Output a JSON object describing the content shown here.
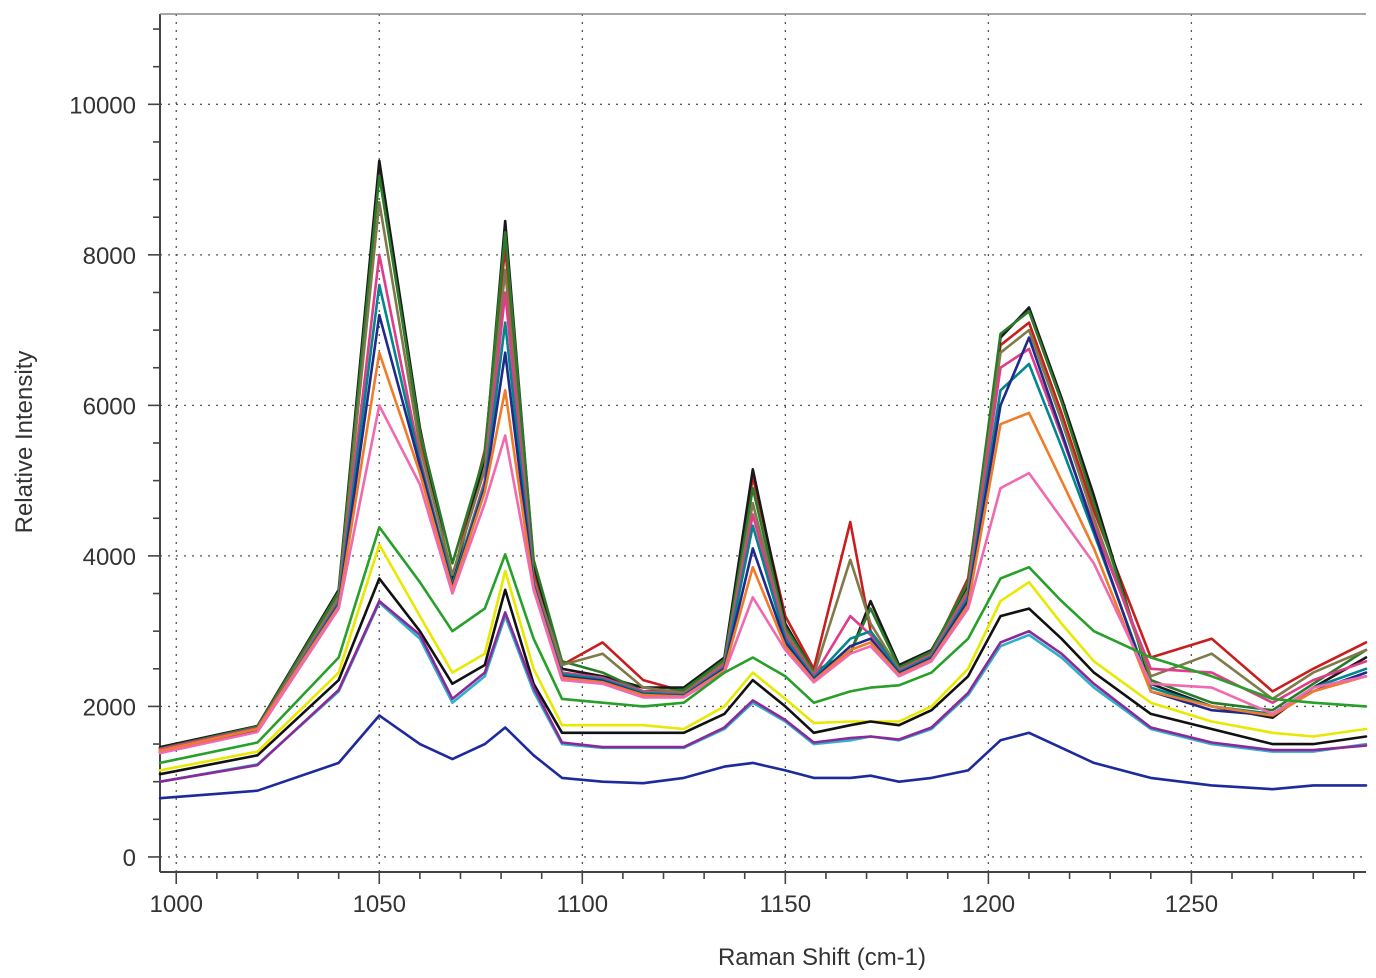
{
  "chart_data": {
    "type": "line",
    "title": "",
    "xlabel": "Raman Shift (cm-1)",
    "ylabel": "Relative Intensity",
    "xlim": [
      996,
      1293
    ],
    "ylim": [
      -200,
      11200
    ],
    "x_ticks": [
      1000,
      1050,
      1100,
      1150,
      1200,
      1250
    ],
    "x_tick_labels": [
      "1000",
      "1050",
      "1100",
      "1150",
      "1200",
      "1250"
    ],
    "y_ticks": [
      0,
      2000,
      4000,
      6000,
      8000,
      10000
    ],
    "y_tick_labels": [
      "0",
      "2000",
      "4000",
      "6000",
      "8000",
      "10000"
    ],
    "grid": true,
    "legend": "none",
    "x": [
      996,
      1020,
      1040,
      1050,
      1060,
      1068,
      1076,
      1081,
      1088,
      1095,
      1105,
      1115,
      1125,
      1135,
      1142,
      1150,
      1157,
      1166,
      1171,
      1178,
      1186,
      1195,
      1203,
      1210,
      1218,
      1226,
      1240,
      1255,
      1270,
      1280,
      1293
    ],
    "series": [
      {
        "color": "#c81e1e",
        "values": [
          1450,
          1720,
          3500,
          9150,
          5600,
          3700,
          5400,
          8100,
          3800,
          2550,
          2850,
          2350,
          2200,
          2600,
          5050,
          3200,
          2500,
          4450,
          3000,
          2500,
          2700,
          3700,
          6800,
          7100,
          5900,
          4600,
          2650,
          2900,
          2200,
          2500,
          2850
        ]
      },
      {
        "color": "#1a1a1a",
        "values": [
          1460,
          1740,
          3550,
          9250,
          5700,
          3650,
          5300,
          8450,
          3900,
          2500,
          2400,
          2250,
          2250,
          2650,
          5150,
          3100,
          2450,
          2700,
          3400,
          2550,
          2750,
          3600,
          6900,
          7300,
          6100,
          4800,
          2300,
          2000,
          1850,
          2250,
          2650
        ]
      },
      {
        "color": "#2a7a2a",
        "values": [
          1440,
          1730,
          3520,
          9050,
          5650,
          3900,
          5350,
          8300,
          3950,
          2600,
          2450,
          2200,
          2220,
          2620,
          4900,
          3050,
          2460,
          2720,
          3300,
          2520,
          2730,
          3650,
          6950,
          7250,
          6050,
          4700,
          2350,
          2050,
          1950,
          2300,
          2750
        ]
      },
      {
        "color": "#7e7a4a",
        "values": [
          1420,
          1700,
          3450,
          8700,
          5450,
          3750,
          5150,
          7800,
          3700,
          2550,
          2700,
          2250,
          2180,
          2580,
          4700,
          3000,
          2420,
          3950,
          3100,
          2490,
          2690,
          3550,
          6700,
          7000,
          5800,
          4500,
          2400,
          2700,
          2100,
          2450,
          2750
        ]
      },
      {
        "color": "#e03c8a",
        "values": [
          1430,
          1710,
          3400,
          8000,
          5300,
          3600,
          5000,
          7500,
          3650,
          2450,
          2380,
          2200,
          2160,
          2550,
          4550,
          2950,
          2400,
          3200,
          2950,
          2480,
          2680,
          3500,
          6500,
          6750,
          5600,
          4400,
          2500,
          2450,
          2050,
          2350,
          2600
        ]
      },
      {
        "color": "#00868b",
        "values": [
          1400,
          1690,
          3380,
          7600,
          5250,
          3620,
          4950,
          7100,
          3620,
          2430,
          2360,
          2180,
          2150,
          2520,
          4400,
          2900,
          2380,
          2900,
          3000,
          2460,
          2660,
          3450,
          6200,
          6550,
          5450,
          4300,
          2250,
          2000,
          1900,
          2250,
          2500
        ]
      },
      {
        "color": "#1f2a8a",
        "values": [
          1390,
          1680,
          3350,
          7200,
          5200,
          3580,
          4900,
          6700,
          3600,
          2400,
          2340,
          2160,
          2140,
          2500,
          4100,
          2850,
          2360,
          2800,
          2900,
          2440,
          2640,
          3400,
          6000,
          6900,
          5650,
          4350,
          2200,
          1950,
          1880,
          2200,
          2450
        ]
      },
      {
        "color": "#f07c2a",
        "values": [
          1410,
          1700,
          3330,
          6700,
          5100,
          3550,
          4850,
          6200,
          3580,
          2380,
          2320,
          2150,
          2130,
          2480,
          3850,
          2800,
          2340,
          2750,
          2850,
          2420,
          2620,
          3350,
          5750,
          5900,
          5000,
          4100,
          2200,
          2000,
          1880,
          2200,
          2400
        ]
      },
      {
        "color": "#f06ab0",
        "values": [
          1380,
          1660,
          3300,
          6000,
          4950,
          3500,
          4700,
          5600,
          3550,
          2350,
          2300,
          2120,
          2120,
          2450,
          3450,
          2750,
          2320,
          2700,
          2800,
          2400,
          2600,
          3300,
          4900,
          5100,
          4500,
          3900,
          2300,
          2250,
          1900,
          2250,
          2400
        ]
      },
      {
        "color": "#27a02a",
        "values": [
          1250,
          1520,
          2650,
          4380,
          3650,
          3000,
          3300,
          4020,
          2900,
          2100,
          2050,
          2000,
          2050,
          2450,
          2650,
          2400,
          2050,
          2200,
          2250,
          2280,
          2450,
          2900,
          3700,
          3850,
          3400,
          3000,
          2650,
          2400,
          2100,
          2050,
          2000
        ]
      },
      {
        "color": "#e8e800",
        "values": [
          1150,
          1400,
          2450,
          4150,
          3200,
          2450,
          2700,
          3800,
          2500,
          1750,
          1750,
          1750,
          1700,
          2000,
          2450,
          2100,
          1780,
          1800,
          1800,
          1800,
          2000,
          2500,
          3400,
          3650,
          3100,
          2600,
          2050,
          1800,
          1650,
          1600,
          1700
        ]
      },
      {
        "color": "#111111",
        "values": [
          1100,
          1350,
          2350,
          3700,
          3000,
          2300,
          2550,
          3550,
          2300,
          1650,
          1650,
          1650,
          1650,
          1900,
          2350,
          2000,
          1650,
          1750,
          1800,
          1750,
          1950,
          2400,
          3200,
          3300,
          2900,
          2450,
          1900,
          1700,
          1500,
          1500,
          1600
        ]
      },
      {
        "color": "#2fb0c8",
        "values": [
          1000,
          1230,
          2200,
          3380,
          2900,
          2050,
          2400,
          3200,
          2200,
          1500,
          1450,
          1450,
          1450,
          1700,
          2050,
          1800,
          1500,
          1550,
          1600,
          1550,
          1700,
          2150,
          2800,
          2950,
          2650,
          2250,
          1700,
          1500,
          1400,
          1400,
          1500
        ]
      },
      {
        "color": "#8a2a9a",
        "values": [
          1000,
          1220,
          2220,
          3400,
          2950,
          2100,
          2450,
          3250,
          2250,
          1520,
          1460,
          1460,
          1460,
          1720,
          2080,
          1820,
          1520,
          1580,
          1600,
          1560,
          1720,
          2180,
          2850,
          3000,
          2700,
          2300,
          1720,
          1520,
          1420,
          1420,
          1480
        ]
      },
      {
        "color": "#1c2a9c",
        "values": [
          780,
          880,
          1250,
          1880,
          1500,
          1300,
          1500,
          1720,
          1350,
          1050,
          1000,
          980,
          1050,
          1200,
          1250,
          1150,
          1050,
          1050,
          1080,
          1000,
          1050,
          1150,
          1550,
          1650,
          1450,
          1250,
          1050,
          950,
          900,
          950,
          950
        ]
      }
    ]
  }
}
